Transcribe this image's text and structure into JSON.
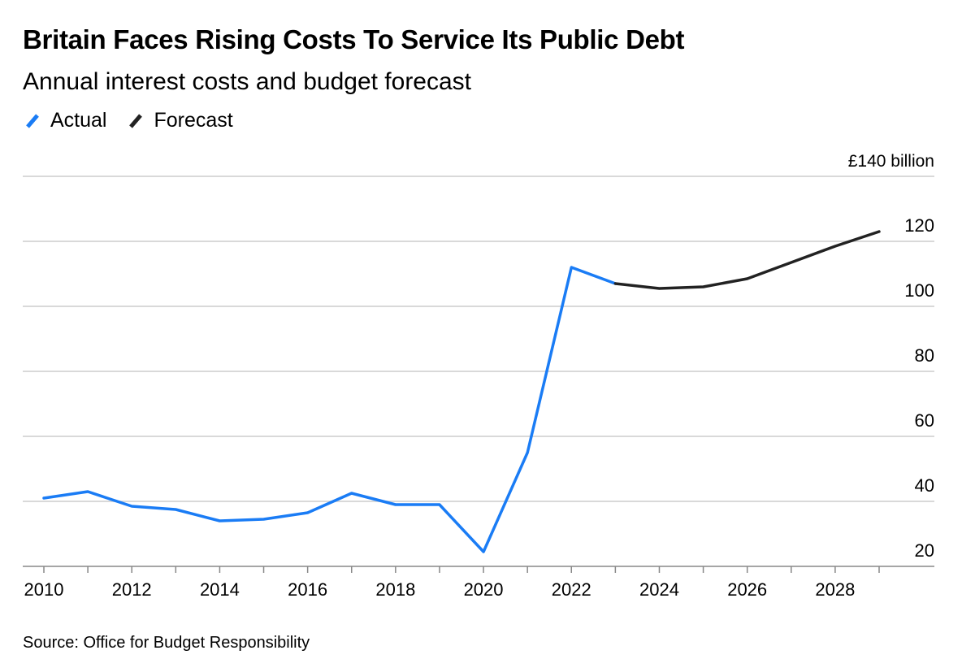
{
  "title": "Britain Faces Rising Costs To Service Its Public Debt",
  "subtitle": "Annual interest costs and budget forecast",
  "source": "Source: Office for Budget Responsibility",
  "legend": [
    {
      "name": "Actual",
      "color": "#1a7cf5"
    },
    {
      "name": "Forecast",
      "color": "#222222"
    }
  ],
  "chart_data": {
    "type": "line",
    "ylabel": "£140 billion",
    "ylim": [
      20,
      140
    ],
    "xlim": [
      2010,
      2029
    ],
    "y_ticks": [
      140,
      120,
      100,
      80,
      60,
      40,
      20
    ],
    "y_tick_labels": [
      "£140 billion",
      "120",
      "100",
      "80",
      "60",
      "40",
      "20"
    ],
    "x_ticks": [
      2010,
      2012,
      2014,
      2016,
      2018,
      2020,
      2022,
      2024,
      2026,
      2028
    ],
    "grid": "horizontal",
    "y_axis_position": "right",
    "series": [
      {
        "name": "Actual",
        "color": "#1a7cf5",
        "x": [
          2010,
          2011,
          2012,
          2013,
          2014,
          2015,
          2016,
          2017,
          2018,
          2019,
          2020,
          2021,
          2022,
          2023
        ],
        "values": [
          41,
          43,
          38.5,
          37.5,
          34,
          34.5,
          36.5,
          42.5,
          39,
          39,
          24.5,
          55,
          112,
          107
        ]
      },
      {
        "name": "Forecast",
        "color": "#222222",
        "x": [
          2023,
          2024,
          2025,
          2026,
          2027,
          2028,
          2029
        ],
        "values": [
          107,
          105.5,
          106,
          108.5,
          113.5,
          118.5,
          123
        ]
      }
    ]
  }
}
